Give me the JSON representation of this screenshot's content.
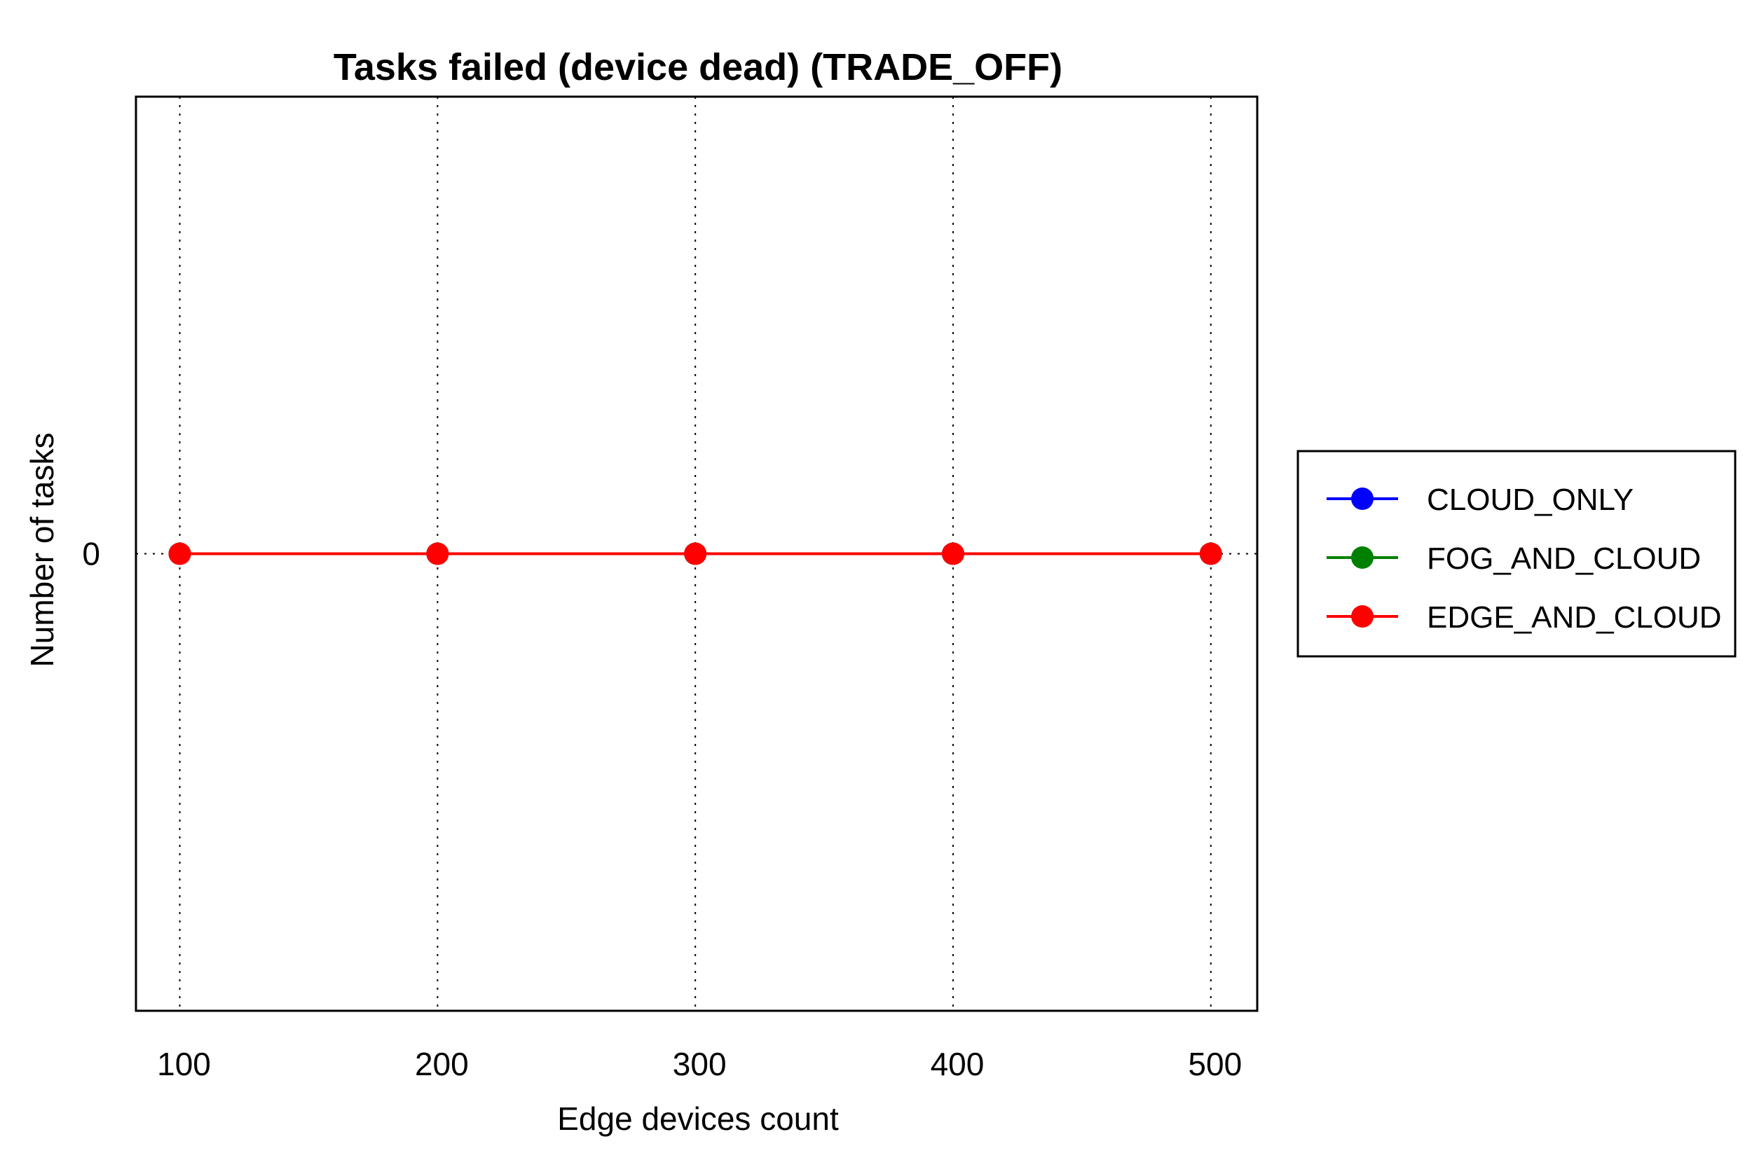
{
  "chart_data": {
    "type": "line",
    "title": "Tasks failed (device dead) (TRADE_OFF)",
    "xlabel": "Edge devices count",
    "ylabel": "Number of tasks",
    "x": [
      100,
      200,
      300,
      400,
      500
    ],
    "x_tick_labels": [
      "100",
      "200",
      "300",
      "400",
      "500"
    ],
    "y_tick_labels": [
      "0"
    ],
    "xlim": [
      83,
      518
    ],
    "ylim": [
      -1,
      1
    ],
    "grid": "x-dotted",
    "legend_position": "right",
    "series": [
      {
        "name": "CLOUD_ONLY",
        "color": "#0000ff",
        "values": [
          0,
          0,
          0,
          0,
          0
        ]
      },
      {
        "name": "FOG_AND_CLOUD",
        "color": "#008000",
        "values": [
          0,
          0,
          0,
          0,
          0
        ]
      },
      {
        "name": "EDGE_AND_CLOUD",
        "color": "#ff0000",
        "values": [
          0,
          0,
          0,
          0,
          0
        ]
      }
    ]
  }
}
